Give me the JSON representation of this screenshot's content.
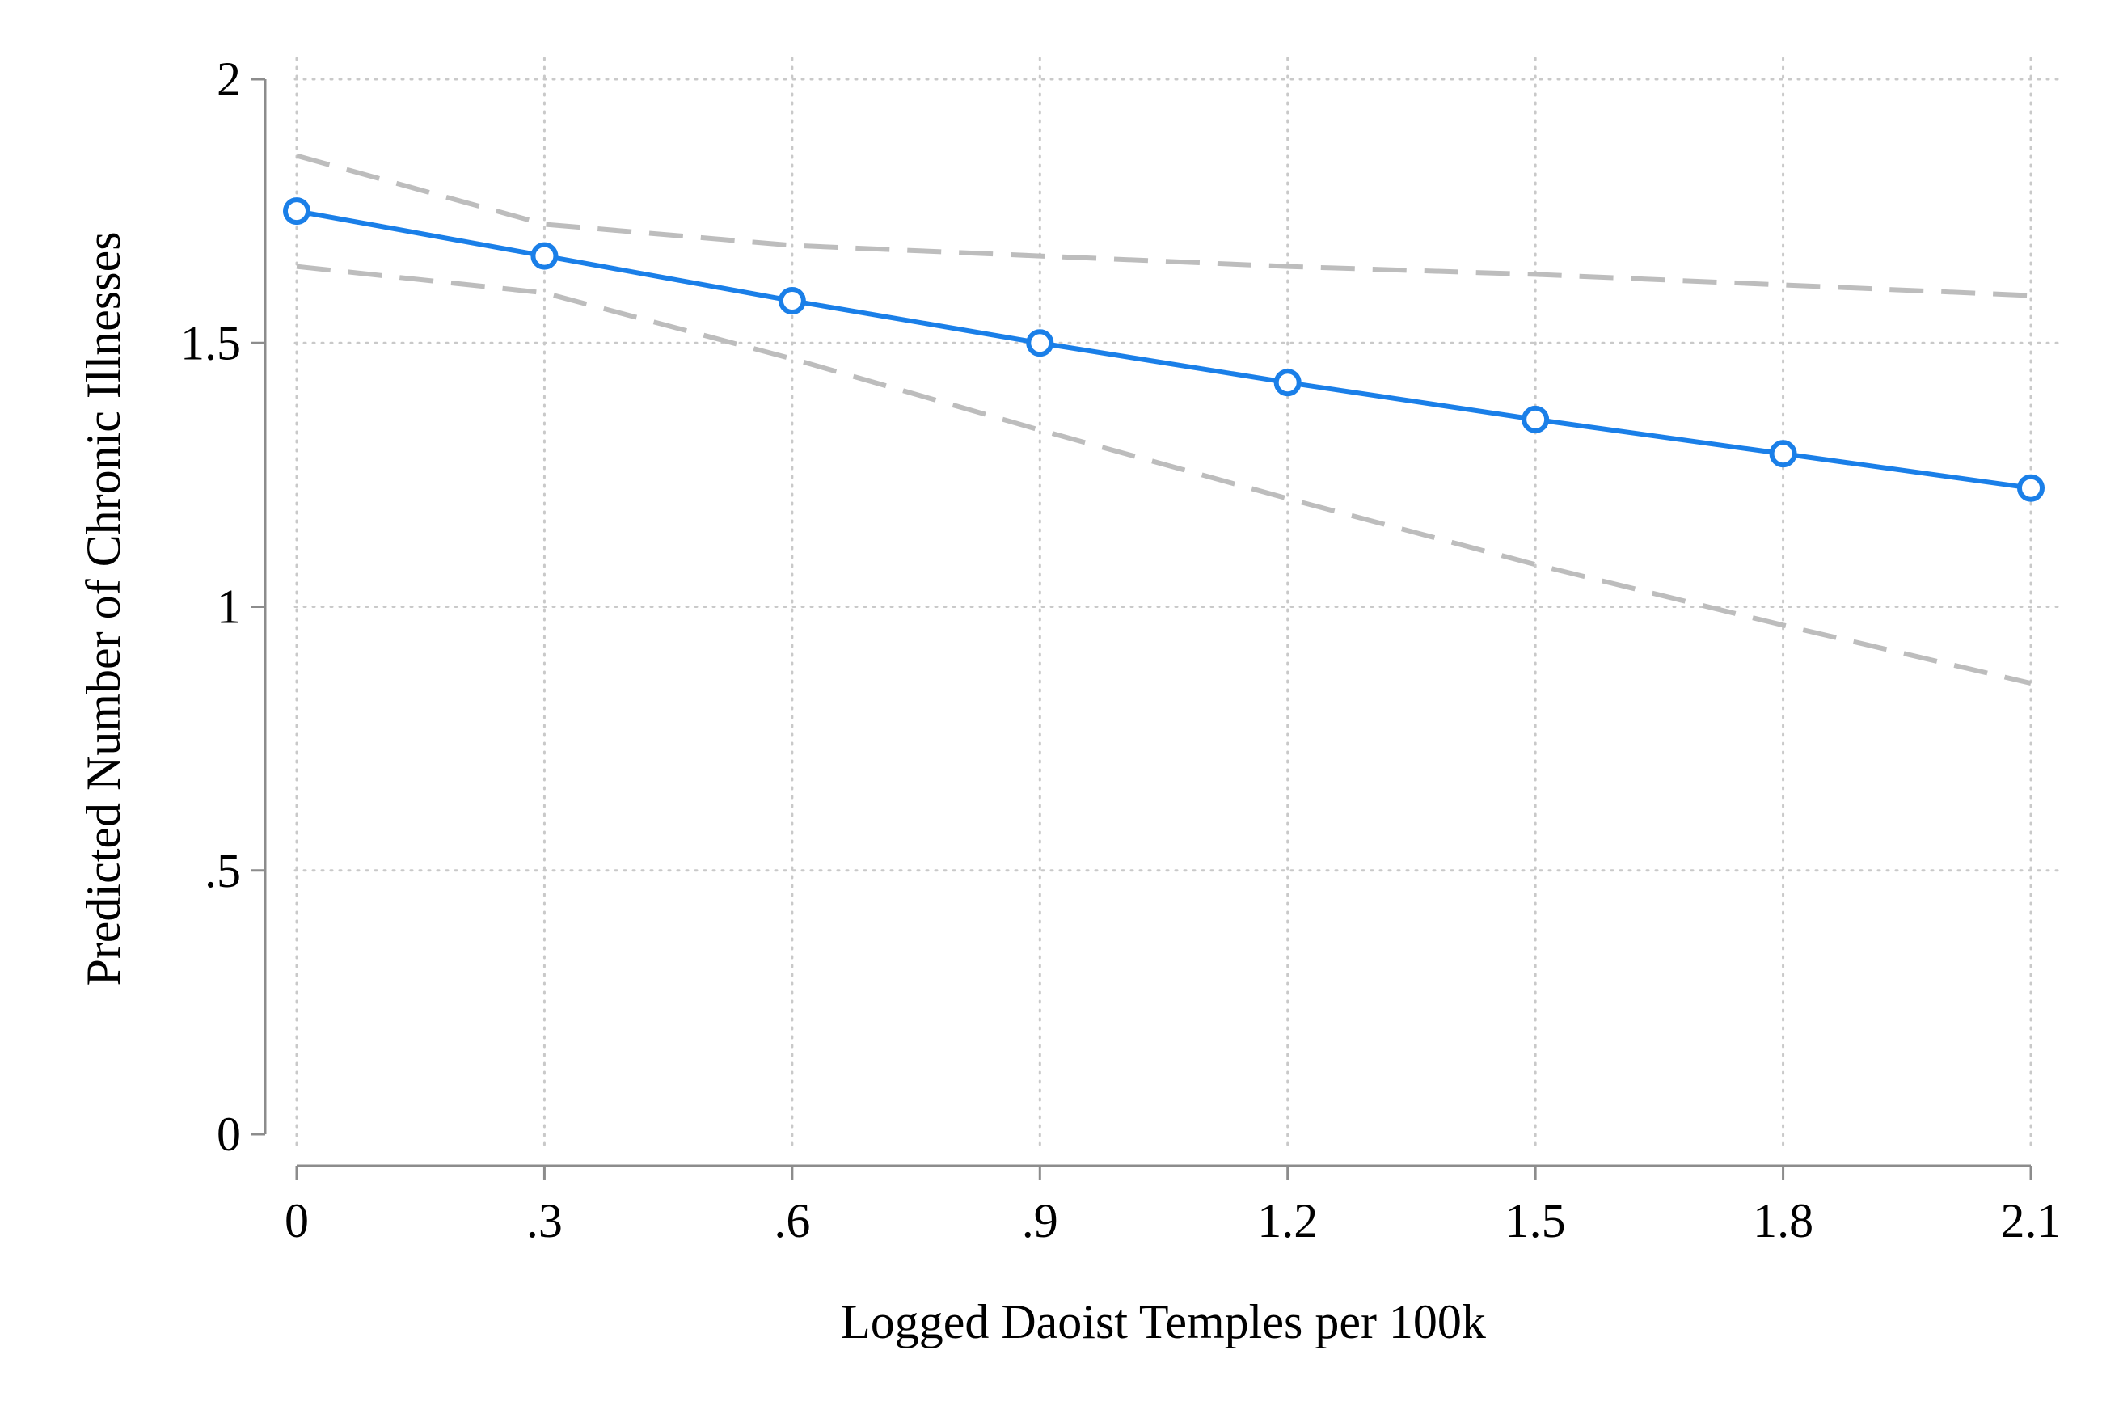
{
  "chart_data": {
    "type": "line",
    "title": "",
    "xlabel": "Logged Daoist Temples per 100k",
    "ylabel": "Predicted Number of Chronic Illnesses",
    "x": [
      0,
      0.3,
      0.6,
      0.9,
      1.2,
      1.5,
      1.8,
      2.1
    ],
    "x_tick_values": [
      0,
      0.3,
      0.6,
      0.9,
      1.2,
      1.5,
      1.8,
      2.1
    ],
    "x_tick_labels": [
      "0",
      ".3",
      ".6",
      ".9",
      "1.2",
      "1.5",
      "1.8",
      "2.1"
    ],
    "y_tick_values": [
      0,
      0.5,
      1,
      1.5,
      2
    ],
    "y_tick_labels": [
      "0",
      ".5",
      "1",
      "1.5",
      "2"
    ],
    "xlim": [
      0,
      2.1
    ],
    "ylim": [
      0,
      2
    ],
    "grid": true,
    "legend": "none",
    "series": [
      {
        "role": "estimate",
        "values": [
          1.75,
          1.665,
          1.58,
          1.5,
          1.425,
          1.355,
          1.29,
          1.225
        ],
        "color": "#1a7fe8",
        "style": "solid",
        "markers": "hollow-circle"
      },
      {
        "role": "upper-ci",
        "values": [
          1.855,
          1.725,
          1.685,
          1.665,
          1.645,
          1.63,
          1.61,
          1.59
        ],
        "color": "#bdbdbd",
        "style": "dashed",
        "markers": "none"
      },
      {
        "role": "lower-ci",
        "values": [
          1.645,
          1.595,
          1.47,
          1.335,
          1.205,
          1.08,
          0.965,
          0.855
        ],
        "color": "#bdbdbd",
        "style": "dashed",
        "markers": "none"
      }
    ]
  },
  "colors": {
    "axis": "#8c8c8c",
    "grid": "#c9c9c9",
    "estimate": "#1a7fe8",
    "ci": "#bdbdbd",
    "background": "#ffffff"
  }
}
